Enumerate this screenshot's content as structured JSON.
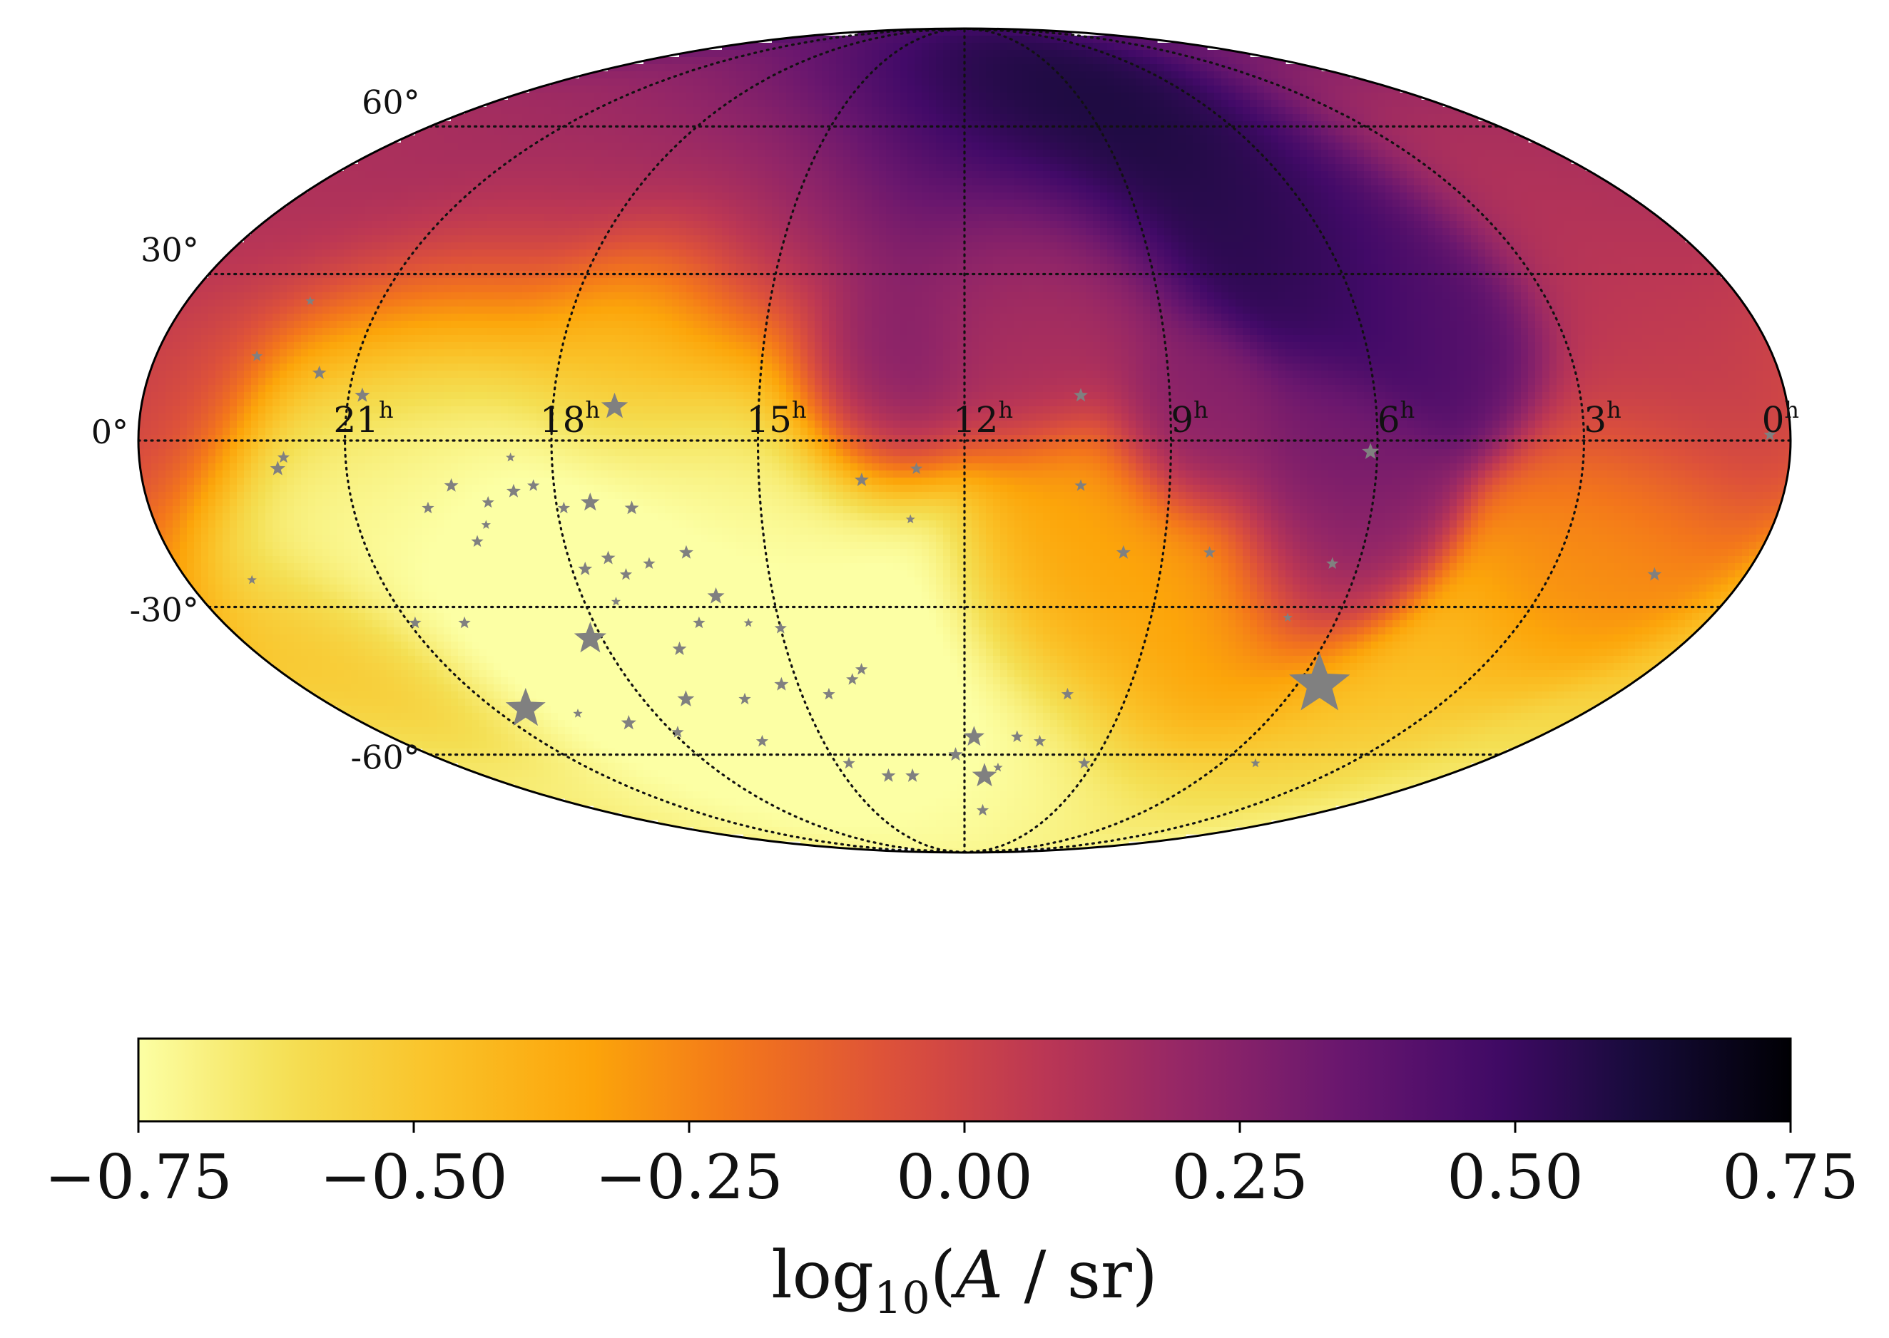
{
  "chart_data": {
    "type": "heatmap",
    "projection": "mollweide",
    "title": "",
    "colormap": "inferno_r",
    "colors": {
      "inferno_r": [
        "#fcffa4",
        "#f4df53",
        "#fac228",
        "#fca50a",
        "#f3761b",
        "#dd513a",
        "#bc3754",
        "#932667",
        "#6a176e",
        "#420a68",
        "#160b39",
        "#000004"
      ],
      "grid": "#111111",
      "star": "#808080",
      "frame": "#000000"
    },
    "colorbar": {
      "label": "log10(A / sr)",
      "label_parts": {
        "pre": "log",
        "sub": "10",
        "paren_open": "(",
        "var": "A",
        "post": " / sr)"
      },
      "vmin": -0.75,
      "vmax": 0.75,
      "ticks": [
        -0.75,
        -0.5,
        -0.25,
        0.0,
        0.25,
        0.5,
        0.75
      ],
      "tick_labels": [
        "−0.75",
        "−0.50",
        "−0.25",
        "0.00",
        "0.25",
        "0.50",
        "0.75"
      ],
      "orientation": "horizontal"
    },
    "latitude_ticks": [
      {
        "dec": 60,
        "label": "60°"
      },
      {
        "dec": 30,
        "label": "30°"
      },
      {
        "dec": 0,
        "label": "0°"
      },
      {
        "dec": -30,
        "label": "-30°"
      },
      {
        "dec": -60,
        "label": "-60°"
      }
    ],
    "ra_ticks": [
      {
        "ra": 21,
        "label": "21",
        "unit": "h"
      },
      {
        "ra": 18,
        "label": "18",
        "unit": "h"
      },
      {
        "ra": 15,
        "label": "15",
        "unit": "h"
      },
      {
        "ra": 12,
        "label": "12",
        "unit": "h"
      },
      {
        "ra": 9,
        "label": "9",
        "unit": "h"
      },
      {
        "ra": 6,
        "label": "6",
        "unit": "h"
      },
      {
        "ra": 3,
        "label": "3",
        "unit": "h"
      },
      {
        "ra": 0,
        "label": "0",
        "unit": "h"
      }
    ],
    "ra_orientation": "east-left",
    "map_features": [
      {
        "ra": 10.5,
        "dec": 72,
        "value": 0.72,
        "sigma": 16
      },
      {
        "ra": 9.2,
        "dec": 65,
        "value": 0.65,
        "sigma": 14
      },
      {
        "ra": 7.0,
        "dec": 48,
        "value": 0.58,
        "sigma": 14
      },
      {
        "ra": 5.5,
        "dec": 34,
        "value": 0.5,
        "sigma": 14
      },
      {
        "ra": 4.6,
        "dec": 23,
        "value": 0.42,
        "sigma": 9
      },
      {
        "ra": 12.0,
        "dec": 60,
        "value": 0.38,
        "sigma": 22
      },
      {
        "ra": 13.4,
        "dec": 12,
        "value": 0.32,
        "sigma": 10
      },
      {
        "ra": 6.7,
        "dec": -8,
        "value": 0.32,
        "sigma": 11
      },
      {
        "ra": 6.3,
        "dec": -22,
        "value": 0.28,
        "sigma": 9
      },
      {
        "ra": 8.6,
        "dec": 3,
        "value": 0.25,
        "sigma": 9
      },
      {
        "ra": 11.0,
        "dec": 28,
        "value": 0.1,
        "sigma": 14
      },
      {
        "ra": 21.0,
        "dec": 50,
        "value": 0.18,
        "sigma": 22
      },
      {
        "ra": 16.0,
        "dec": 42,
        "value": 0.12,
        "sigma": 20
      },
      {
        "ra": 1.0,
        "dec": 45,
        "value": 0.1,
        "sigma": 24
      },
      {
        "ra": 1.0,
        "dec": 10,
        "value": 0.02,
        "sigma": 16
      },
      {
        "ra": 23.5,
        "dec": 10,
        "value": 0.0,
        "sigma": 10
      },
      {
        "ra": 10.0,
        "dec": -25,
        "value": -0.32,
        "sigma": 14
      },
      {
        "ra": 7.5,
        "dec": -40,
        "value": -0.3,
        "sigma": 16
      },
      {
        "ra": 2.0,
        "dec": -22,
        "value": -0.28,
        "sigma": 14
      },
      {
        "ra": 4.0,
        "dec": -55,
        "value": -0.45,
        "sigma": 14
      },
      {
        "ra": 17.5,
        "dec": -35,
        "value": -0.85,
        "sigma": 24
      },
      {
        "ra": 15.5,
        "dec": -10,
        "value": -0.7,
        "sigma": 20
      },
      {
        "ra": 20.5,
        "dec": -5,
        "value": -0.72,
        "sigma": 24
      },
      {
        "ra": 13.0,
        "dec": -60,
        "value": -0.8,
        "sigma": 22
      },
      {
        "ra": 20.0,
        "dec": -70,
        "value": -0.72,
        "sigma": 20
      },
      {
        "ra": 11.0,
        "dec": -75,
        "value": -0.7,
        "sigma": 14
      },
      {
        "ra": 3.0,
        "dec": -70,
        "value": -0.65,
        "sigma": 14
      },
      {
        "ra": 22.5,
        "dec": -45,
        "value": -0.45,
        "sigma": 12
      },
      {
        "ra": 17.0,
        "dec": 18,
        "value": -0.55,
        "sigma": 12
      }
    ],
    "stars": [
      {
        "ra": 5.6,
        "dec": -45,
        "size": 3.2
      },
      {
        "ra": 20.4,
        "dec": -50,
        "size": 2.1
      },
      {
        "ra": 18.2,
        "dec": -36,
        "size": 1.7
      },
      {
        "ra": 17.1,
        "dec": 6,
        "size": 1.4
      },
      {
        "ra": 11.5,
        "dec": -65,
        "size": 1.3
      },
      {
        "ra": 11.8,
        "dec": -56,
        "size": 1.1
      },
      {
        "ra": 17.5,
        "dec": -11,
        "size": 1.0
      },
      {
        "ra": 6.1,
        "dec": -2,
        "size": 0.9
      },
      {
        "ra": 17.2,
        "dec": -48,
        "size": 0.9
      },
      {
        "ra": 15.9,
        "dec": -28,
        "size": 0.9
      },
      {
        "ra": 22.0,
        "dec": -5,
        "size": 0.8
      },
      {
        "ra": 20.8,
        "dec": 8,
        "size": 0.8
      },
      {
        "ra": 18.7,
        "dec": -53,
        "size": 0.8
      },
      {
        "ra": 21.5,
        "dec": 12,
        "size": 0.75
      },
      {
        "ra": 16.2,
        "dec": -20,
        "size": 0.75
      },
      {
        "ra": 19.5,
        "dec": -8,
        "size": 0.75
      },
      {
        "ra": 18.6,
        "dec": -9,
        "size": 0.75
      },
      {
        "ra": 16.9,
        "dec": -12,
        "size": 0.75
      },
      {
        "ra": 17.4,
        "dec": -21,
        "size": 0.75
      },
      {
        "ra": 17.8,
        "dec": -23,
        "size": 0.75
      },
      {
        "ra": 16.8,
        "dec": -38,
        "size": 0.75
      },
      {
        "ra": 15.3,
        "dec": -45,
        "size": 0.75
      },
      {
        "ra": 13.9,
        "dec": -65,
        "size": 0.75
      },
      {
        "ra": 13.3,
        "dec": -65,
        "size": 0.75
      },
      {
        "ra": 12.2,
        "dec": -60,
        "size": 0.75
      },
      {
        "ra": 9.6,
        "dec": -20,
        "size": 0.75
      },
      {
        "ra": 10.3,
        "dec": 8,
        "size": 0.75
      },
      {
        "ra": 13.5,
        "dec": -7,
        "size": 0.75
      },
      {
        "ra": 1.4,
        "dec": -24,
        "size": 0.75
      },
      {
        "ra": 21.9,
        "dec": -3,
        "size": 0.65
      },
      {
        "ra": 19.9,
        "dec": -12,
        "size": 0.65
      },
      {
        "ra": 19.0,
        "dec": -11,
        "size": 0.65
      },
      {
        "ra": 18.3,
        "dec": -8,
        "size": 0.65
      },
      {
        "ra": 17.9,
        "dec": -12,
        "size": 0.65
      },
      {
        "ra": 17.2,
        "dec": -24,
        "size": 0.65
      },
      {
        "ra": 16.8,
        "dec": -22,
        "size": 0.65
      },
      {
        "ra": 16.3,
        "dec": -33,
        "size": 0.65
      },
      {
        "ra": 15.0,
        "dec": -34,
        "size": 0.65
      },
      {
        "ra": 14.5,
        "dec": -47,
        "size": 0.65
      },
      {
        "ra": 14.0,
        "dec": -44,
        "size": 0.65
      },
      {
        "ra": 13.8,
        "dec": -42,
        "size": 0.65
      },
      {
        "ra": 14.7,
        "dec": -62,
        "size": 0.65
      },
      {
        "ra": 16.3,
        "dec": -57,
        "size": 0.65
      },
      {
        "ra": 17.9,
        "dec": -55,
        "size": 0.65
      },
      {
        "ra": 16.1,
        "dec": -48,
        "size": 0.65
      },
      {
        "ra": 20.9,
        "dec": -33,
        "size": 0.65
      },
      {
        "ra": 20.1,
        "dec": -33,
        "size": 0.65
      },
      {
        "ra": 19.3,
        "dec": -18,
        "size": 0.65
      },
      {
        "ra": 10.9,
        "dec": -56,
        "size": 0.65
      },
      {
        "ra": 10.4,
        "dec": -57,
        "size": 0.65
      },
      {
        "ra": 10.1,
        "dec": -47,
        "size": 0.65
      },
      {
        "ra": 9.2,
        "dec": -62,
        "size": 0.65
      },
      {
        "ra": 10.3,
        "dec": -8,
        "size": 0.65
      },
      {
        "ra": 11.4,
        "dec": -74,
        "size": 0.65
      },
      {
        "ra": 12.7,
        "dec": -5,
        "size": 0.65
      },
      {
        "ra": 6.4,
        "dec": -22,
        "size": 0.65
      },
      {
        "ra": 8.3,
        "dec": -20,
        "size": 0.65
      },
      {
        "ra": 0.3,
        "dec": 1,
        "size": 0.65
      },
      {
        "ra": 22.5,
        "dec": 15,
        "size": 0.6
      },
      {
        "ra": 23.0,
        "dec": -25,
        "size": 0.5
      },
      {
        "ra": 12.8,
        "dec": -14,
        "size": 0.5
      },
      {
        "ra": 5.2,
        "dec": -62,
        "size": 0.5
      },
      {
        "ra": 6.8,
        "dec": -32,
        "size": 0.5
      },
      {
        "ra": 18.6,
        "dec": -3,
        "size": 0.5
      },
      {
        "ra": 17.5,
        "dec": -29,
        "size": 0.5
      },
      {
        "ra": 15.5,
        "dec": -33,
        "size": 0.5
      },
      {
        "ra": 19.5,
        "dec": -51,
        "size": 0.5
      },
      {
        "ra": 11.2,
        "dec": -63,
        "size": 0.5
      },
      {
        "ra": 22.1,
        "dec": 25,
        "size": 0.5
      },
      {
        "ra": 19.1,
        "dec": -15,
        "size": 0.5
      }
    ]
  }
}
